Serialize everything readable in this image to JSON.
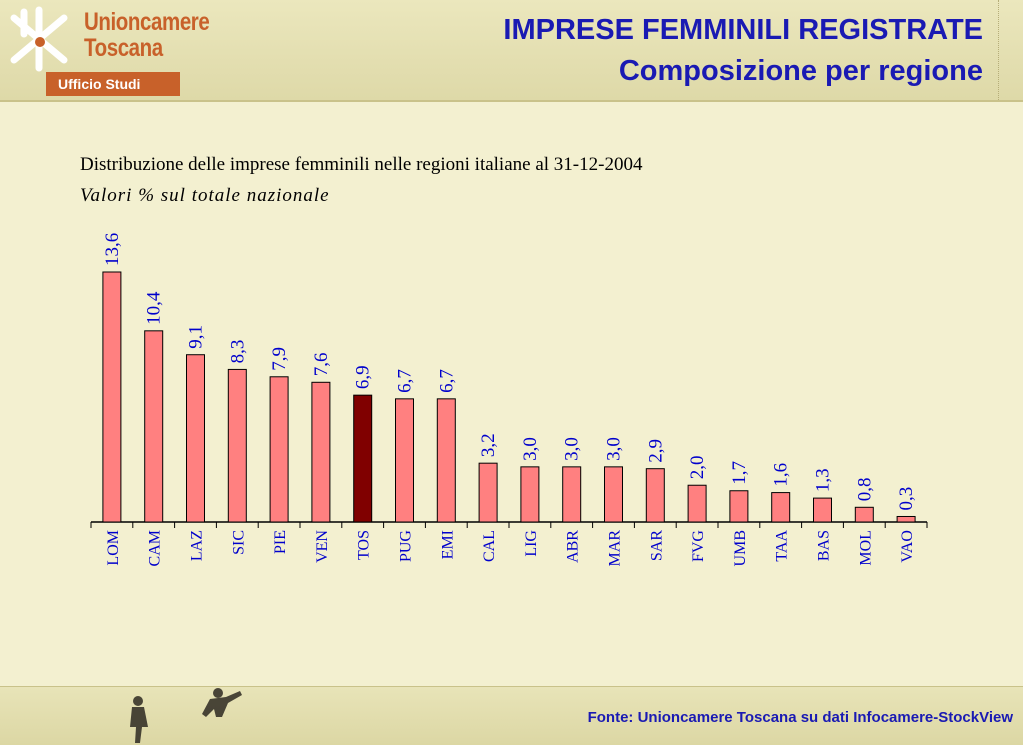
{
  "header": {
    "logo_line1": "Unioncamere",
    "logo_line2": "Toscana",
    "office": "Ufficio Studi",
    "title": "IMPRESE FEMMINILI REGISTRATE",
    "subtitle": "Composizione per regione"
  },
  "chart_data": {
    "type": "bar",
    "title": "Distribuzione delle imprese femminili nelle regioni italiane al 31-12-2004",
    "subtitle": "Valori % sul totale nazionale",
    "categories": [
      "LOM",
      "CAM",
      "LAZ",
      "SIC",
      "PIE",
      "VEN",
      "TOS",
      "PUG",
      "EMI",
      "CAL",
      "LIG",
      "ABR",
      "MAR",
      "SAR",
      "FVG",
      "UMB",
      "TAA",
      "BAS",
      "MOL",
      "VAO"
    ],
    "values": [
      13.6,
      10.4,
      9.1,
      8.3,
      7.9,
      7.6,
      6.9,
      6.7,
      6.7,
      3.2,
      3.0,
      3.0,
      3.0,
      2.9,
      2.0,
      1.7,
      1.6,
      1.3,
      0.8,
      0.3
    ],
    "data_labels": [
      "13,6",
      "10,4",
      "9,1",
      "8,3",
      "7,9",
      "7,6",
      "6,9",
      "6,7",
      "6,7",
      "3,2",
      "3,0",
      "3,0",
      "3,0",
      "2,9",
      "2,0",
      "1,7",
      "1,6",
      "1,3",
      "0,8",
      "0,3"
    ],
    "highlight_category": "TOS",
    "colors": {
      "bar": "#ff8080",
      "highlight": "#800000",
      "text": "#0000cc",
      "axis": "#000000"
    },
    "ylim": [
      0,
      14
    ],
    "grid": false,
    "legend": "none"
  },
  "footer": {
    "source": "Fonte: Unioncamere Toscana su dati Infocamere-StockView"
  },
  "icons": {
    "logo": "unioncamere-asterisk-icon",
    "footer": "walking-people-figures"
  }
}
